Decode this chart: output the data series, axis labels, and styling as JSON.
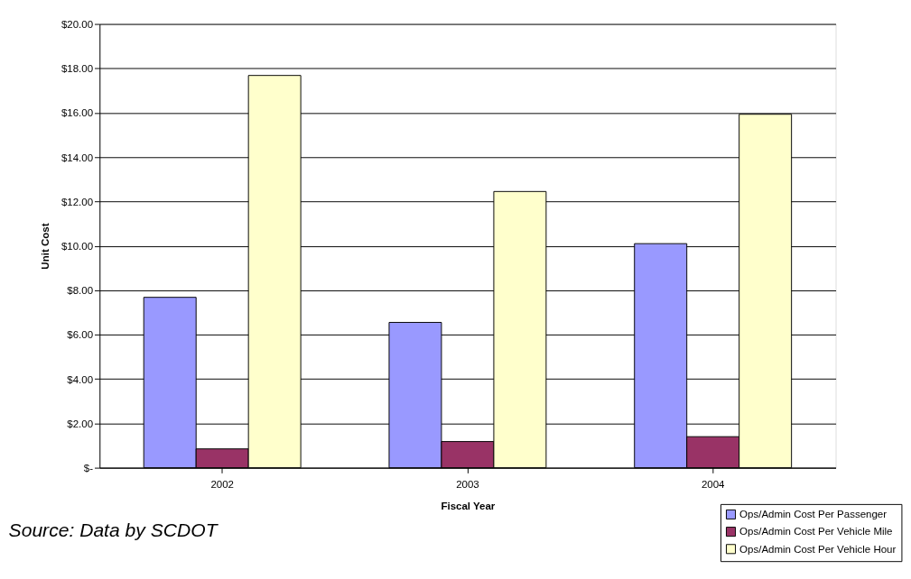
{
  "chart_data": {
    "type": "bar",
    "xlabel": "Fiscal Year",
    "ylabel": "Unit Cost",
    "categories": [
      "2002",
      "2003",
      "2004"
    ],
    "series": [
      {
        "name": "Ops/Admin Cost Per Passenger",
        "color": "#9999ff",
        "values": [
          7.68,
          6.55,
          10.1
        ]
      },
      {
        "name": "Ops/Admin Cost Per Vehicle Mile",
        "color": "#993366",
        "values": [
          0.85,
          1.18,
          1.4
        ]
      },
      {
        "name": "Ops/Admin Cost Per Vehicle Hour",
        "color": "#ffffcc",
        "values": [
          17.68,
          12.45,
          15.93
        ]
      }
    ],
    "ylim": [
      0,
      20
    ],
    "yticks": [
      {
        "value": 0,
        "label": "$-"
      },
      {
        "value": 2,
        "label": "$2.00"
      },
      {
        "value": 4,
        "label": "$4.00"
      },
      {
        "value": 6,
        "label": "$6.00"
      },
      {
        "value": 8,
        "label": "$8.00"
      },
      {
        "value": 10,
        "label": "$10.00"
      },
      {
        "value": 12,
        "label": "$12.00"
      },
      {
        "value": 14,
        "label": "$14.00"
      },
      {
        "value": 16,
        "label": "$16.00"
      },
      {
        "value": 18,
        "label": "$18.00"
      },
      {
        "value": 20,
        "label": "$20.00"
      }
    ],
    "grid": "y",
    "legend": "bottom right",
    "annotations": [
      "Source: Data by SCDOT"
    ]
  }
}
